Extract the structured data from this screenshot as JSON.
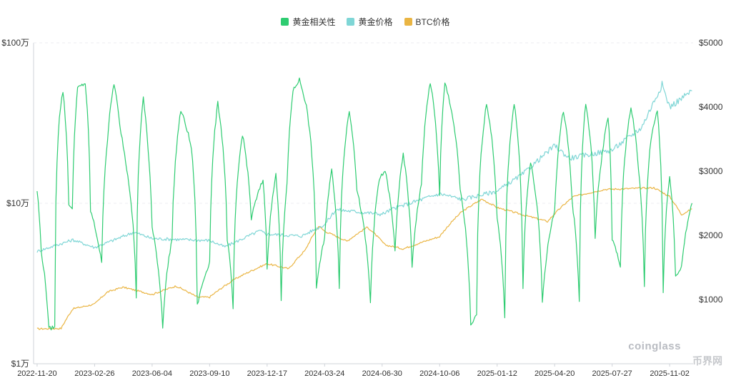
{
  "chart_data": {
    "type": "line",
    "legend": [
      {
        "name": "黄金相关性",
        "color": "#2ecc71"
      },
      {
        "name": "黄金价格",
        "color": "#7fd6d6"
      },
      {
        "name": "BTC价格",
        "color": "#eab543"
      }
    ],
    "x_ticks": [
      "2022-11-20",
      "2023-02-26",
      "2023-06-04",
      "2023-09-10",
      "2023-12-17",
      "2024-03-24",
      "2024-06-30",
      "2024-10-06",
      "2025-01-12",
      "2025-04-20",
      "2025-07-27",
      "2025-11-02"
    ],
    "left_axis": {
      "scale": "log",
      "ticks": [
        "$1万",
        "$10万",
        "$100万"
      ],
      "tick_values": [
        10000,
        100000,
        1000000
      ]
    },
    "right_axis": {
      "ticks": [
        "$1000",
        "$2000",
        "$3000",
        "$4000",
        "$5000"
      ],
      "tick_values": [
        1000,
        2000,
        3000,
        4000,
        5000
      ]
    },
    "series": [
      {
        "name": "BTC价格",
        "axis": "left",
        "points": [
          [
            "2022-11-20",
            16500
          ],
          [
            "2022-12-31",
            16600
          ],
          [
            "2023-01-20",
            22000
          ],
          [
            "2023-02-26",
            23500
          ],
          [
            "2023-03-20",
            28000
          ],
          [
            "2023-04-15",
            30000
          ],
          [
            "2023-06-04",
            27000
          ],
          [
            "2023-07-15",
            30500
          ],
          [
            "2023-08-20",
            26000
          ],
          [
            "2023-09-10",
            26000
          ],
          [
            "2023-10-25",
            34000
          ],
          [
            "2023-12-17",
            42000
          ],
          [
            "2024-01-23",
            39000
          ],
          [
            "2024-02-20",
            51000
          ],
          [
            "2024-03-14",
            72000
          ],
          [
            "2024-03-24",
            67000
          ],
          [
            "2024-05-01",
            58000
          ],
          [
            "2024-06-05",
            71000
          ],
          [
            "2024-07-05",
            55000
          ],
          [
            "2024-08-05",
            52000
          ],
          [
            "2024-10-06",
            62000
          ],
          [
            "2024-11-12",
            88000
          ],
          [
            "2024-12-17",
            106000
          ],
          [
            "2025-01-12",
            94000
          ],
          [
            "2025-02-28",
            84000
          ],
          [
            "2025-04-08",
            77000
          ],
          [
            "2025-05-22",
            110000
          ],
          [
            "2025-07-14",
            122000
          ],
          [
            "2025-08-14",
            123000
          ],
          [
            "2025-10-06",
            125000
          ],
          [
            "2025-11-02",
            110000
          ],
          [
            "2025-11-22",
            85000
          ],
          [
            "2025-12-10",
            92000
          ]
        ]
      },
      {
        "name": "黄金价格",
        "axis": "right",
        "points": [
          [
            "2022-11-20",
            1750
          ],
          [
            "2023-01-20",
            1930
          ],
          [
            "2023-02-26",
            1810
          ],
          [
            "2023-05-04",
            2050
          ],
          [
            "2023-06-04",
            1950
          ],
          [
            "2023-09-10",
            1920
          ],
          [
            "2023-10-06",
            1820
          ],
          [
            "2023-12-04",
            2070
          ],
          [
            "2023-12-17",
            2020
          ],
          [
            "2024-02-14",
            1990
          ],
          [
            "2024-03-24",
            2170
          ],
          [
            "2024-04-12",
            2400
          ],
          [
            "2024-06-30",
            2330
          ],
          [
            "2024-07-20",
            2420
          ],
          [
            "2024-10-06",
            2650
          ],
          [
            "2024-11-14",
            2560
          ],
          [
            "2025-01-12",
            2690
          ],
          [
            "2025-02-24",
            2950
          ],
          [
            "2025-04-20",
            3400
          ],
          [
            "2025-05-15",
            3200
          ],
          [
            "2025-07-27",
            3330
          ],
          [
            "2025-09-15",
            3680
          ],
          [
            "2025-10-20",
            4350
          ],
          [
            "2025-11-02",
            4000
          ],
          [
            "2025-12-10",
            4250
          ]
        ]
      },
      {
        "name": "黄金相关性",
        "axis": "left",
        "points": [
          [
            "2022-11-20",
            120000
          ],
          [
            "2022-11-27",
            50000
          ],
          [
            "2022-12-10",
            16500
          ],
          [
            "2022-12-20",
            17000
          ],
          [
            "2022-12-28",
            350000
          ],
          [
            "2023-01-03",
            500000
          ],
          [
            "2023-01-13",
            100000
          ],
          [
            "2023-01-19",
            90000
          ],
          [
            "2023-01-28",
            520000
          ],
          [
            "2023-02-10",
            560000
          ],
          [
            "2023-02-19",
            90000
          ],
          [
            "2023-03-10",
            42000
          ],
          [
            "2023-03-20",
            250000
          ],
          [
            "2023-03-31",
            560000
          ],
          [
            "2023-04-10",
            300000
          ],
          [
            "2023-04-20",
            180000
          ],
          [
            "2023-05-08",
            26000
          ],
          [
            "2023-05-20",
            450000
          ],
          [
            "2023-05-28",
            220000
          ],
          [
            "2023-06-04",
            70000
          ],
          [
            "2023-06-22",
            17000
          ],
          [
            "2023-07-08",
            60000
          ],
          [
            "2023-07-23",
            380000
          ],
          [
            "2023-08-10",
            220000
          ],
          [
            "2023-08-20",
            23000
          ],
          [
            "2023-09-10",
            43000
          ],
          [
            "2023-09-24",
            420000
          ],
          [
            "2023-10-10",
            60000
          ],
          [
            "2023-10-20",
            22000
          ],
          [
            "2023-11-05",
            270000
          ],
          [
            "2023-11-20",
            80000
          ],
          [
            "2023-12-10",
            140000
          ],
          [
            "2023-12-17",
            40000
          ],
          [
            "2024-01-01",
            150000
          ],
          [
            "2024-01-10",
            25000
          ],
          [
            "2024-01-20",
            130000
          ],
          [
            "2024-01-30",
            500000
          ],
          [
            "2024-02-10",
            590000
          ],
          [
            "2024-02-22",
            400000
          ],
          [
            "2024-03-10",
            30000
          ],
          [
            "2024-03-24",
            60000
          ],
          [
            "2024-04-05",
            160000
          ],
          [
            "2024-04-18",
            30000
          ],
          [
            "2024-05-05",
            380000
          ],
          [
            "2024-05-18",
            120000
          ],
          [
            "2024-06-10",
            24000
          ],
          [
            "2024-06-25",
            140000
          ],
          [
            "2024-07-05",
            160000
          ],
          [
            "2024-07-22",
            50000
          ],
          [
            "2024-08-05",
            200000
          ],
          [
            "2024-08-20",
            40000
          ],
          [
            "2024-09-05",
            130000
          ],
          [
            "2024-09-20",
            570000
          ],
          [
            "2024-10-06",
            110000
          ],
          [
            "2024-10-15",
            560000
          ],
          [
            "2024-10-25",
            400000
          ],
          [
            "2024-11-10",
            120000
          ],
          [
            "2024-11-28",
            17000
          ],
          [
            "2024-12-08",
            20000
          ],
          [
            "2024-12-25",
            420000
          ],
          [
            "2025-01-12",
            80000
          ],
          [
            "2025-01-25",
            19000
          ],
          [
            "2025-02-10",
            420000
          ],
          [
            "2025-02-25",
            30000
          ],
          [
            "2025-03-10",
            180000
          ],
          [
            "2025-03-30",
            24000
          ],
          [
            "2025-04-20",
            90000
          ],
          [
            "2025-05-05",
            380000
          ],
          [
            "2025-05-20",
            100000
          ],
          [
            "2025-06-01",
            24000
          ],
          [
            "2025-06-12",
            420000
          ],
          [
            "2025-06-28",
            60000
          ],
          [
            "2025-07-10",
            200000
          ],
          [
            "2025-07-20",
            350000
          ],
          [
            "2025-07-27",
            60000
          ],
          [
            "2025-08-10",
            40000
          ],
          [
            "2025-08-28",
            400000
          ],
          [
            "2025-09-10",
            160000
          ],
          [
            "2025-09-20",
            30000
          ],
          [
            "2025-10-01",
            250000
          ],
          [
            "2025-10-12",
            380000
          ],
          [
            "2025-10-22",
            28000
          ],
          [
            "2025-11-02",
            150000
          ],
          [
            "2025-11-12",
            35000
          ],
          [
            "2025-11-22",
            40000
          ],
          [
            "2025-12-10",
            100000
          ]
        ]
      }
    ]
  },
  "watermark": {
    "brand": "coinglass",
    "site": "币界网"
  }
}
